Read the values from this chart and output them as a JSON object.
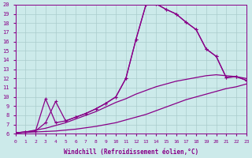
{
  "bg_color": "#cceaea",
  "line_color": "#880088",
  "grid_color": "#aacccc",
  "xlabel": "Windchill (Refroidissement éolien,°C)",
  "xmin": 0,
  "xmax": 23,
  "ymin": 6,
  "ymax": 20,
  "line1": {
    "x": [
      0,
      1,
      2,
      3,
      4,
      5,
      6,
      7,
      8,
      9,
      10,
      11,
      12,
      13,
      14,
      15,
      16,
      17,
      18,
      19,
      20,
      21,
      22,
      23
    ],
    "y": [
      6.1,
      6.15,
      6.2,
      6.25,
      6.3,
      6.4,
      6.5,
      6.65,
      6.8,
      7.0,
      7.2,
      7.5,
      7.8,
      8.1,
      8.5,
      8.9,
      9.3,
      9.7,
      10.0,
      10.3,
      10.6,
      10.9,
      11.1,
      11.4
    ]
  },
  "line2": {
    "x": [
      0,
      1,
      2,
      3,
      4,
      5,
      6,
      7,
      8,
      9,
      10,
      11,
      12,
      13,
      14,
      15,
      16,
      17,
      18,
      19,
      20,
      21,
      22,
      23
    ],
    "y": [
      6.1,
      6.2,
      6.4,
      6.6,
      6.9,
      7.2,
      7.6,
      8.0,
      8.4,
      8.9,
      9.4,
      9.8,
      10.3,
      10.7,
      11.1,
      11.4,
      11.7,
      11.9,
      12.1,
      12.3,
      12.4,
      12.3,
      12.2,
      12.0
    ]
  },
  "line3": {
    "x": [
      0,
      1,
      2,
      3,
      4,
      5,
      6,
      7,
      8,
      9,
      10,
      11,
      12,
      13,
      14,
      15,
      16,
      17,
      18,
      19,
      20,
      21,
      22,
      23
    ],
    "y": [
      6.1,
      6.2,
      6.3,
      9.8,
      7.2,
      7.4,
      7.8,
      8.2,
      8.7,
      9.3,
      10.0,
      12.0,
      16.2,
      20.0,
      20.1,
      19.5,
      19.0,
      18.1,
      17.3,
      15.2,
      14.4,
      12.1,
      12.2,
      11.8
    ]
  },
  "line4": {
    "x": [
      0,
      1,
      2,
      3,
      4,
      5,
      6,
      7,
      8,
      9,
      10,
      11,
      12,
      13,
      14,
      15,
      16,
      17,
      18,
      19,
      20,
      21,
      22,
      23
    ],
    "y": [
      6.1,
      6.2,
      6.3,
      7.2,
      9.5,
      7.4,
      7.8,
      8.2,
      8.7,
      9.3,
      10.0,
      12.0,
      16.2,
      20.0,
      20.1,
      19.5,
      19.0,
      18.1,
      17.3,
      15.2,
      14.4,
      12.1,
      12.2,
      11.8
    ]
  }
}
